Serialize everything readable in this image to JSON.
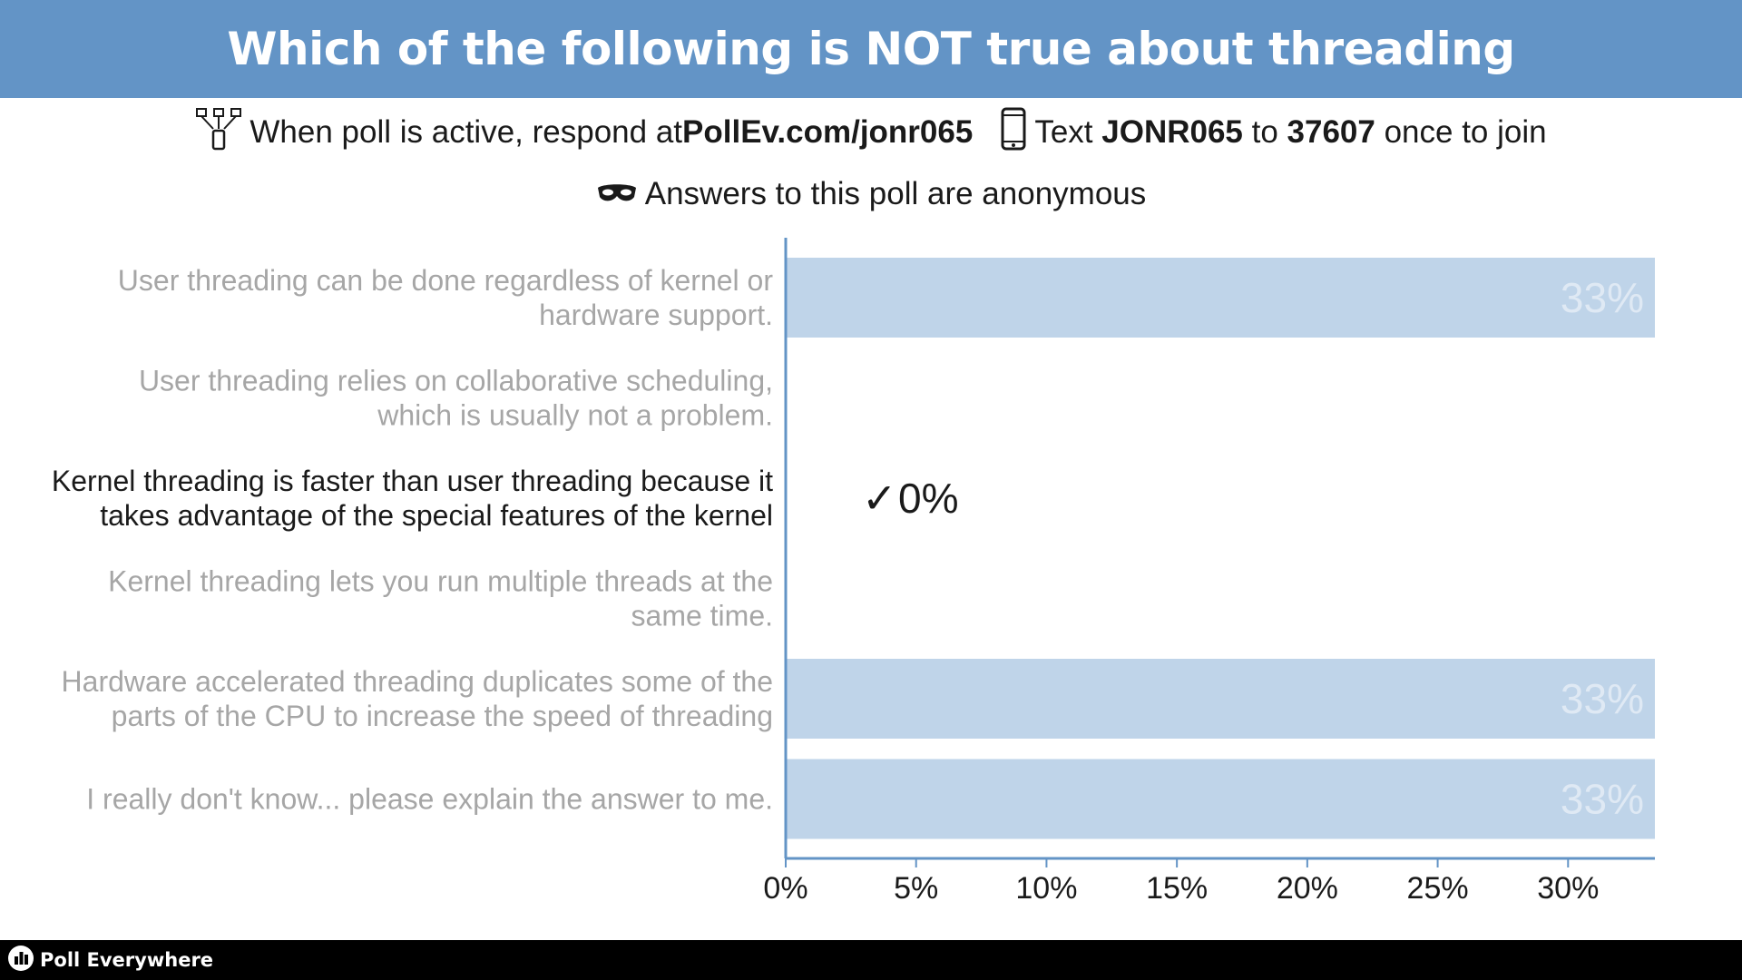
{
  "header": {
    "title": "Which of the following is NOT true about threading"
  },
  "instructions": {
    "web_prefix": "When poll is active, respond at ",
    "web_url": "PollEv.com/jonr065",
    "text_prefix": "Text ",
    "text_code": "JONR065",
    "text_to": " to ",
    "text_number": "37607",
    "text_suffix": " once to join",
    "anonymous": "Answers to this poll are anonymous"
  },
  "icons": {
    "web": "network-icon",
    "phone": "phone-icon",
    "anonymous": "mask-icon",
    "brand": "poll-everywhere-logo-icon",
    "correct": "checkmark"
  },
  "colors": {
    "header_bg": "#6394c6",
    "bar": "#bfd4e9",
    "axis": "#6394c6",
    "label_dim": "#a6a6a6",
    "label_correct": "#1a1a1a",
    "bar_value_text": "#dfe9f4"
  },
  "chart_data": {
    "type": "bar",
    "orientation": "horizontal",
    "categories": [
      [
        "User threading can be done regardless of kernel or",
        "hardware support."
      ],
      [
        "User threading relies on collaborative scheduling,",
        "which is usually not a problem."
      ],
      [
        "Kernel threading is faster than user threading because it",
        "takes advantage of the special features of the kernel"
      ],
      [
        "Kernel threading lets you run multiple threads at the",
        "same time."
      ],
      [
        "Hardware accelerated threading duplicates some of the",
        "parts of the CPU to increase the speed of threading"
      ],
      [
        "I really don't know... please explain the answer to me."
      ]
    ],
    "values": [
      33.33,
      0,
      0,
      0,
      33.33,
      33.33
    ],
    "value_labels": [
      "33%",
      "",
      "0%",
      "",
      "33%",
      "33%"
    ],
    "correct_index": 2,
    "correct_mark": "✓",
    "xlim": [
      0,
      33.33
    ],
    "xticks": [
      0,
      5,
      10,
      15,
      20,
      25,
      30
    ],
    "xtick_labels": [
      "0%",
      "5%",
      "10%",
      "15%",
      "20%",
      "25%",
      "30%"
    ],
    "grid": false,
    "legend": "none"
  },
  "footer": {
    "brand": "Poll Everywhere"
  }
}
